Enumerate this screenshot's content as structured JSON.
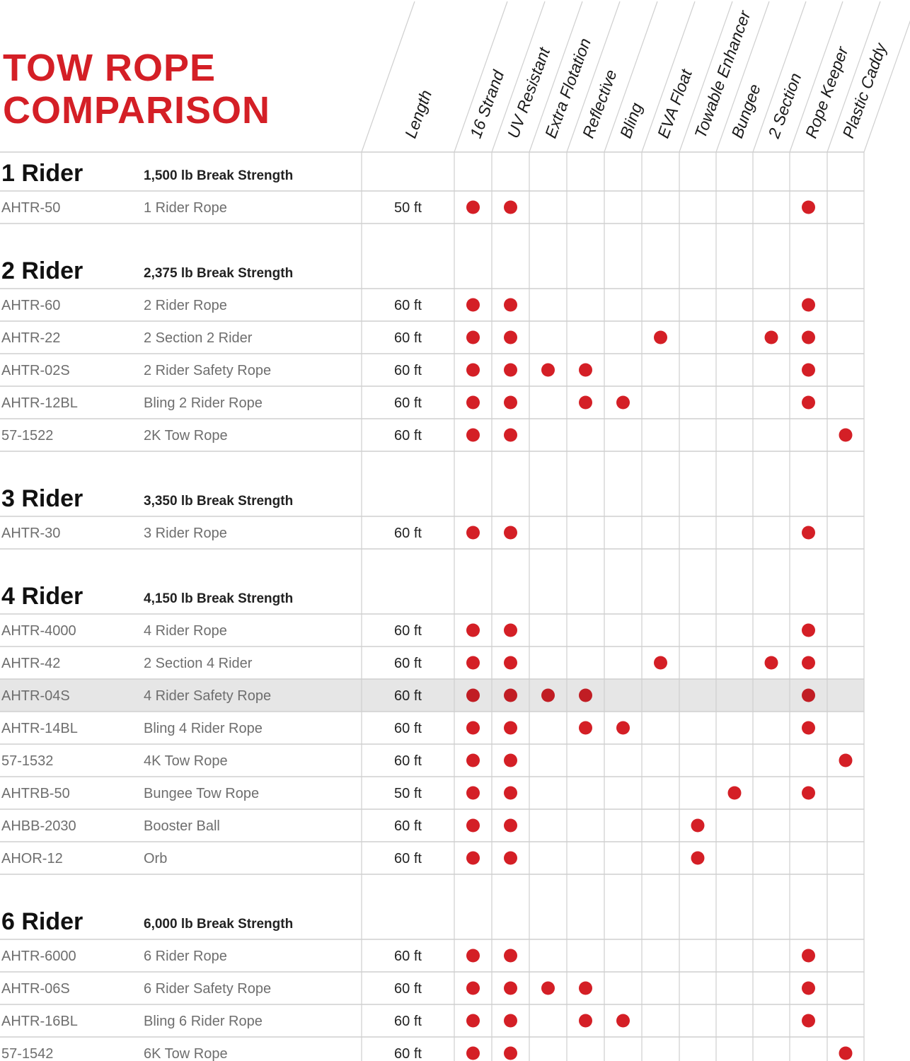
{
  "title_lines": [
    "TOW ROPE",
    "COMPARISON"
  ],
  "columns": [
    "Length",
    "16 Strand",
    "UV Resistant",
    "Extra Flotation",
    "Reflective",
    "Bling",
    "EVA Float",
    "Towable Enhancer",
    "Bungee",
    "2 Section",
    "Rope Keeper",
    "Plastic Caddy"
  ],
  "colors": {
    "title": "#d41f26",
    "dot": "#d41f26",
    "grid": "#cfcfcf",
    "highlight_row": "#e6e6e6"
  },
  "groups": [
    {
      "title": "1 Rider",
      "strength": "1,500 lb Break Strength",
      "rows": [
        {
          "code": "AHTR-50",
          "name": "1 Rider Rope",
          "length": "50 ft",
          "features": [
            1,
            1,
            0,
            0,
            0,
            0,
            0,
            0,
            0,
            1,
            0
          ]
        }
      ]
    },
    {
      "title": "2 Rider",
      "strength": "2,375 lb Break Strength",
      "rows": [
        {
          "code": "AHTR-60",
          "name": "2 Rider Rope",
          "length": "60 ft",
          "features": [
            1,
            1,
            0,
            0,
            0,
            0,
            0,
            0,
            0,
            1,
            0
          ]
        },
        {
          "code": "AHTR-22",
          "name": "2 Section 2 Rider",
          "length": "60 ft",
          "features": [
            1,
            1,
            0,
            0,
            0,
            1,
            0,
            0,
            1,
            1,
            0
          ]
        },
        {
          "code": "AHTR-02S",
          "name": "2 Rider Safety Rope",
          "length": "60 ft",
          "features": [
            1,
            1,
            1,
            1,
            0,
            0,
            0,
            0,
            0,
            1,
            0
          ]
        },
        {
          "code": "AHTR-12BL",
          "name": "Bling 2 Rider Rope",
          "length": "60 ft",
          "features": [
            1,
            1,
            0,
            1,
            1,
            0,
            0,
            0,
            0,
            1,
            0
          ]
        },
        {
          "code": "57-1522",
          "name": "2K Tow Rope",
          "length": "60 ft",
          "features": [
            1,
            1,
            0,
            0,
            0,
            0,
            0,
            0,
            0,
            0,
            1
          ]
        }
      ]
    },
    {
      "title": "3 Rider",
      "strength": "3,350 lb Break Strength",
      "rows": [
        {
          "code": "AHTR-30",
          "name": "3 Rider Rope",
          "length": "60 ft",
          "features": [
            1,
            1,
            0,
            0,
            0,
            0,
            0,
            0,
            0,
            1,
            0
          ]
        }
      ]
    },
    {
      "title": "4 Rider",
      "strength": "4,150 lb Break Strength",
      "rows": [
        {
          "code": "AHTR-4000",
          "name": "4 Rider Rope",
          "length": "60 ft",
          "features": [
            1,
            1,
            0,
            0,
            0,
            0,
            0,
            0,
            0,
            1,
            0
          ]
        },
        {
          "code": "AHTR-42",
          "name": "2 Section 4 Rider",
          "length": "60 ft",
          "features": [
            1,
            1,
            0,
            0,
            0,
            1,
            0,
            0,
            1,
            1,
            0
          ]
        },
        {
          "code": "AHTR-04S",
          "name": "4 Rider Safety Rope",
          "length": "60 ft",
          "features": [
            1,
            1,
            1,
            1,
            0,
            0,
            0,
            0,
            0,
            1,
            0
          ],
          "highlighted": true
        },
        {
          "code": "AHTR-14BL",
          "name": "Bling 4 Rider Rope",
          "length": "60 ft",
          "features": [
            1,
            1,
            0,
            1,
            1,
            0,
            0,
            0,
            0,
            1,
            0
          ]
        },
        {
          "code": "57-1532",
          "name": "4K Tow Rope",
          "length": "60 ft",
          "features": [
            1,
            1,
            0,
            0,
            0,
            0,
            0,
            0,
            0,
            0,
            1
          ]
        },
        {
          "code": "AHTRB-50",
          "name": "Bungee Tow Rope",
          "length": "50 ft",
          "features": [
            1,
            1,
            0,
            0,
            0,
            0,
            0,
            1,
            0,
            1,
            0
          ]
        },
        {
          "code": "AHBB-2030",
          "name": "Booster Ball",
          "length": "60 ft",
          "features": [
            1,
            1,
            0,
            0,
            0,
            0,
            1,
            0,
            0,
            0,
            0
          ]
        },
        {
          "code": "AHOR-12",
          "name": "Orb",
          "length": "60 ft",
          "features": [
            1,
            1,
            0,
            0,
            0,
            0,
            1,
            0,
            0,
            0,
            0
          ]
        }
      ]
    },
    {
      "title": "6 Rider",
      "strength": "6,000 lb Break Strength",
      "rows": [
        {
          "code": "AHTR-6000",
          "name": "6 Rider Rope",
          "length": "60 ft",
          "features": [
            1,
            1,
            0,
            0,
            0,
            0,
            0,
            0,
            0,
            1,
            0
          ]
        },
        {
          "code": "AHTR-06S",
          "name": "6 Rider Safety Rope",
          "length": "60 ft",
          "features": [
            1,
            1,
            1,
            1,
            0,
            0,
            0,
            0,
            0,
            1,
            0
          ]
        },
        {
          "code": "AHTR-16BL",
          "name": "Bling 6 Rider Rope",
          "length": "60 ft",
          "features": [
            1,
            1,
            0,
            1,
            1,
            0,
            0,
            0,
            0,
            1,
            0
          ]
        },
        {
          "code": "57-1542",
          "name": "6K Tow Rope",
          "length": "60 ft",
          "features": [
            1,
            1,
            0,
            0,
            0,
            0,
            0,
            0,
            0,
            0,
            1
          ]
        }
      ]
    }
  ]
}
